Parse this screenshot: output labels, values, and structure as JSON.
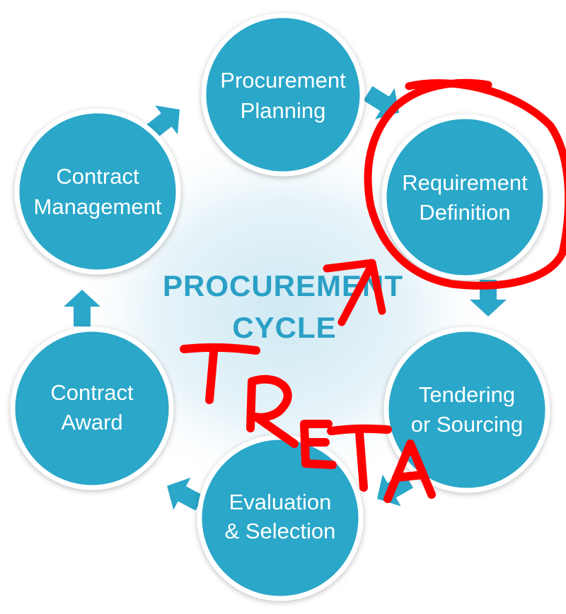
{
  "diagram": {
    "center": {
      "line1": "PROCUREMENT",
      "line2": "CYCLE"
    },
    "nodes": [
      {
        "id": "procurement-planning",
        "line1": "Procurement",
        "line2": "Planning"
      },
      {
        "id": "requirement-definition",
        "line1": "Requirement",
        "line2": "Definition"
      },
      {
        "id": "tendering-or-sourcing",
        "line1": "Tendering",
        "line2": "or Sourcing"
      },
      {
        "id": "evaluation-selection",
        "line1": "Evaluation",
        "line2": "& Selection"
      },
      {
        "id": "contract-award",
        "line1": "Contract",
        "line2": "Award"
      },
      {
        "id": "contract-management",
        "line1": "Contract",
        "line2": "Management"
      }
    ]
  },
  "annotation": {
    "handwritten_text": "TRETA",
    "marks": [
      "circle around Requirement Definition",
      "arrow pointing to Requirement Definition"
    ]
  },
  "colors": {
    "node_fill": "#2aa7c9",
    "node_border": "#ffffff",
    "arrow": "#2aa7c9",
    "center_text": "#2aa0c6",
    "glow": "#cfe9f3",
    "ink": "#ff0000"
  }
}
